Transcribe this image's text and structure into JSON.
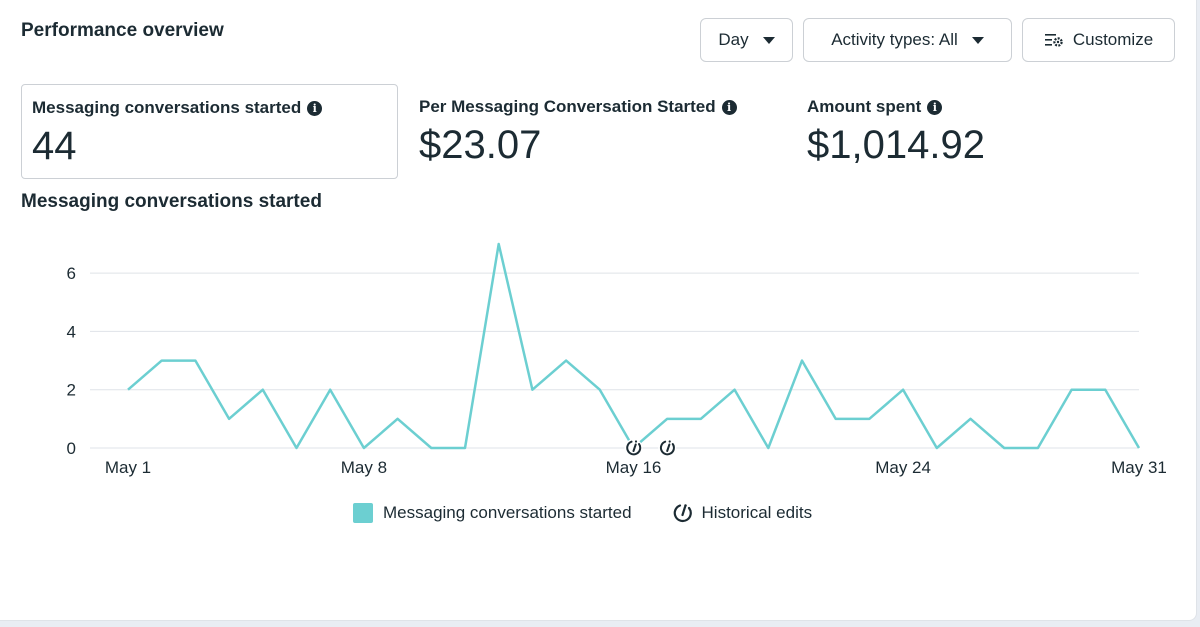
{
  "header": {
    "title": "Performance overview",
    "day_label": "Day",
    "activity_label": "Activity types: All",
    "customize_label": "Customize"
  },
  "metrics": [
    {
      "label": "Messaging conversations started",
      "value": "44"
    },
    {
      "label": "Per Messaging Conversation Started",
      "value": "$23.07"
    },
    {
      "label": "Amount spent",
      "value": "$1,014.92"
    }
  ],
  "chart_title": "Messaging conversations started",
  "legend": {
    "series_label": "Messaging conversations started",
    "edits_label": "Historical edits"
  },
  "colors": {
    "series": "#6ccfd1",
    "grid": "#dfe3e8",
    "text": "#1c2b33"
  },
  "chart_data": {
    "type": "line",
    "series": [
      {
        "name": "Messaging conversations started",
        "values": [
          2,
          3,
          3,
          1,
          2,
          0,
          2,
          0,
          1,
          0,
          0,
          7,
          2,
          3,
          2,
          0,
          1,
          1,
          2,
          0,
          3,
          1,
          1,
          2,
          0,
          1,
          0,
          0,
          2,
          2,
          0
        ]
      }
    ],
    "x_days": [
      1,
      2,
      3,
      4,
      5,
      6,
      7,
      8,
      9,
      10,
      11,
      12,
      13,
      14,
      15,
      16,
      17,
      18,
      19,
      20,
      21,
      22,
      23,
      24,
      25,
      26,
      27,
      28,
      29,
      30,
      31
    ],
    "x_tick_days": [
      1,
      8,
      16,
      24,
      31
    ],
    "x_tick_labels": [
      "May 1",
      "May 8",
      "May 16",
      "May 24",
      "May 31"
    ],
    "y_ticks": [
      0,
      2,
      4,
      6
    ],
    "ylim": [
      0,
      7
    ],
    "historical_edit_days": [
      16,
      17
    ]
  }
}
